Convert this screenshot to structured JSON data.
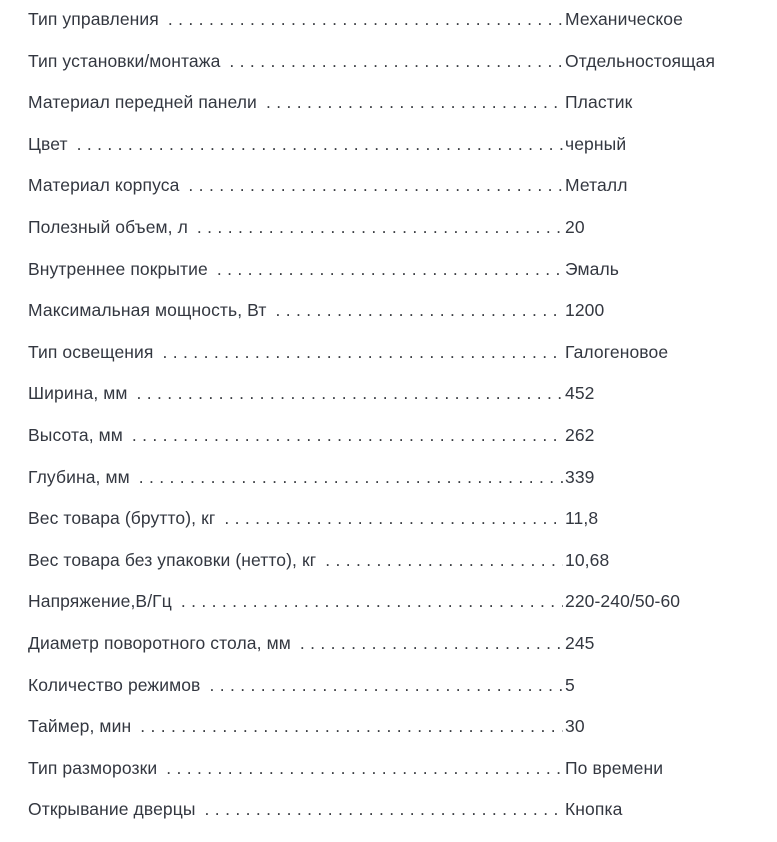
{
  "colors": {
    "text": "#333740",
    "background": "#ffffff",
    "leader_dots": "#3a3d42"
  },
  "spec_table": {
    "rows": [
      {
        "label": "Тип управления",
        "value": "Механическое"
      },
      {
        "label": "Тип установки/монтажа",
        "value": "Отдельностоящая"
      },
      {
        "label": "Материал передней панели",
        "value": "Пластик"
      },
      {
        "label": "Цвет",
        "value": "черный"
      },
      {
        "label": "Материал корпуса",
        "value": "Металл"
      },
      {
        "label": "Полезный объем, л",
        "value": "20"
      },
      {
        "label": "Внутреннее покрытие",
        "value": "Эмаль"
      },
      {
        "label": "Максимальная мощность, Вт",
        "value": "1200"
      },
      {
        "label": "Тип освещения",
        "value": "Галогеновое"
      },
      {
        "label": "Ширина, мм",
        "value": "452"
      },
      {
        "label": "Высота, мм",
        "value": "262"
      },
      {
        "label": "Глубина, мм",
        "value": "339"
      },
      {
        "label": "Вес товара (брутто), кг",
        "value": "11,8"
      },
      {
        "label": "Вес товара без упаковки (нетто), кг",
        "value": "10,68"
      },
      {
        "label": "Напряжение,В/Гц",
        "value": "220-240/50-60"
      },
      {
        "label": "Диаметр поворотного стола, мм",
        "value": "245"
      },
      {
        "label": "Количество режимов",
        "value": "5"
      },
      {
        "label": "Таймер, мин",
        "value": "30"
      },
      {
        "label": "Тип разморозки",
        "value": "По времени"
      },
      {
        "label": "Открывание дверцы",
        "value": "Кнопка"
      }
    ]
  }
}
